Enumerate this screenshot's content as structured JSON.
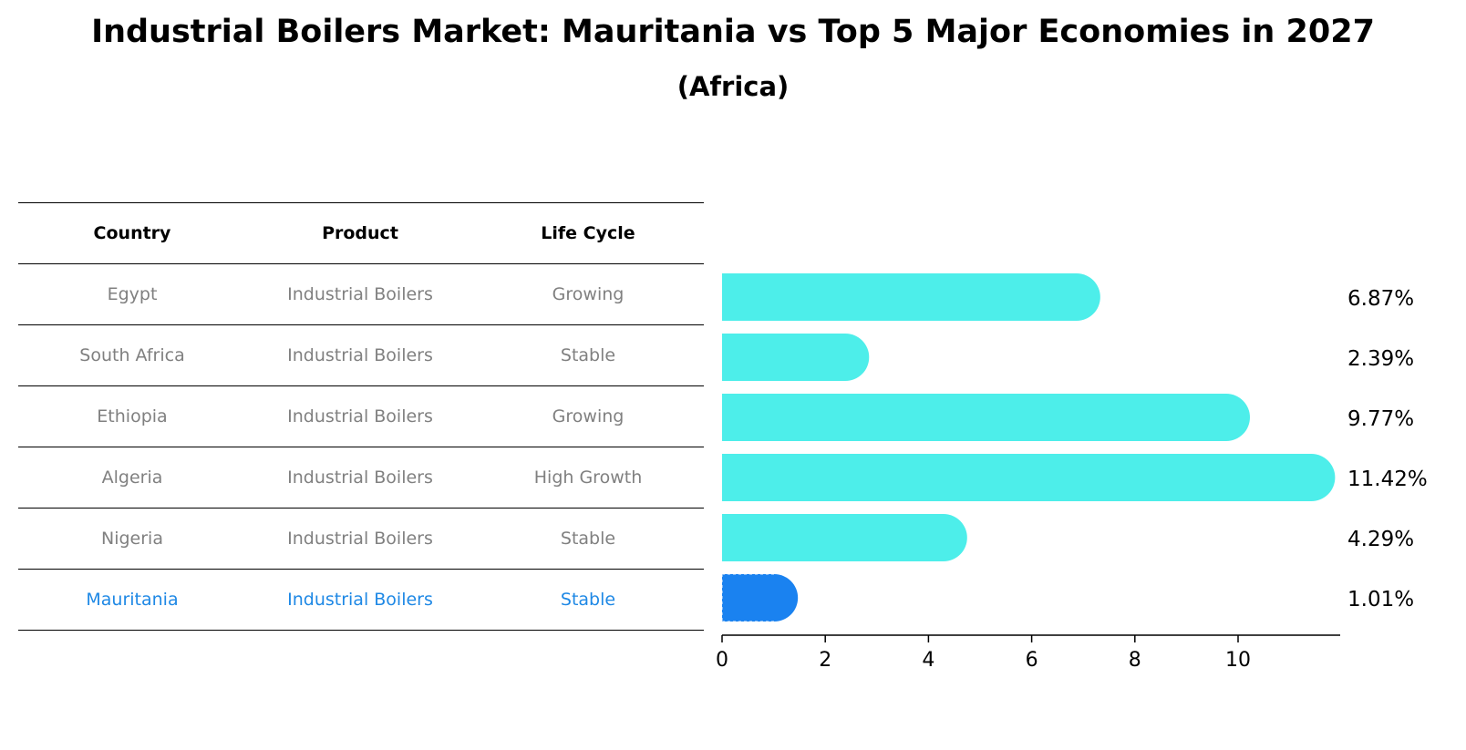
{
  "title": "Industrial Boilers Market: Mauritania vs Top 5 Major Economies in 2027",
  "subtitle": "(Africa)",
  "table": {
    "headers": [
      "Country",
      "Product",
      "Life Cycle"
    ],
    "rows": [
      [
        "Egypt",
        "Industrial Boilers",
        "Growing"
      ],
      [
        "South Africa",
        "Industrial Boilers",
        "Stable"
      ],
      [
        "Ethiopia",
        "Industrial Boilers",
        "Growing"
      ],
      [
        "Algeria",
        "Industrial Boilers",
        "High Growth"
      ],
      [
        "Nigeria",
        "Industrial Boilers",
        "Stable"
      ],
      [
        "Mauritania",
        "Industrial Boilers",
        "Stable"
      ]
    ],
    "highlight_row": 5,
    "highlight_color": "#1e88e5",
    "text_color": "#808080"
  },
  "chart_data": {
    "type": "bar",
    "orientation": "horizontal",
    "categories": [
      "Egypt",
      "South Africa",
      "Ethiopia",
      "Algeria",
      "Nigeria",
      "Mauritania"
    ],
    "values": [
      6.87,
      2.39,
      9.77,
      11.42,
      4.29,
      1.01
    ],
    "value_labels": [
      "6.87%",
      "2.39%",
      "9.77%",
      "11.42%",
      "4.29%",
      "1.01%"
    ],
    "xticks": [
      0,
      2,
      4,
      6,
      8,
      10
    ],
    "xlim": [
      0,
      12
    ],
    "bar_color": "#4deeea",
    "highlight_color": "#1a82f0",
    "highlight_index": 5,
    "grid": false
  }
}
